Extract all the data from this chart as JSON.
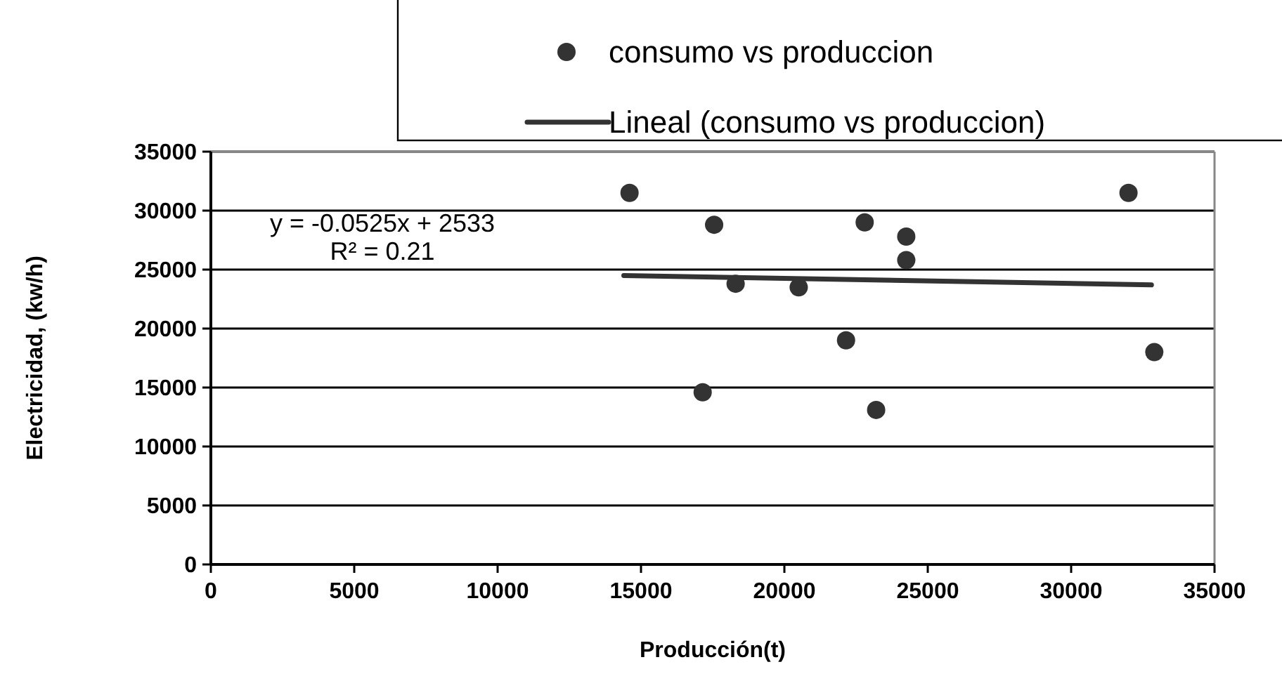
{
  "chart_data": {
    "type": "scatter",
    "xlabel": "Producción(t)",
    "ylabel": "Electricidad, (kw/h)",
    "xlim": [
      0,
      35000
    ],
    "ylim": [
      0,
      35000
    ],
    "xticks": [
      0,
      5000,
      10000,
      15000,
      20000,
      25000,
      30000,
      35000
    ],
    "yticks": [
      0,
      5000,
      10000,
      15000,
      20000,
      25000,
      30000,
      35000
    ],
    "grid": "y",
    "legend": "top right",
    "marker": "circle",
    "annotations": [
      "y = -0.0525x + 2533",
      "R² = 0.21"
    ],
    "series": [
      {
        "name": "consumo vs produccion",
        "color": "#333333",
        "x": [
          14600,
          17550,
          18300,
          17150,
          20500,
          22800,
          24250,
          24250,
          22150,
          23200,
          32000,
          32900
        ],
        "values": [
          31500,
          28800,
          23800,
          14600,
          23500,
          29000,
          27800,
          25800,
          19000,
          13100,
          31500,
          18000
        ]
      },
      {
        "name": "Lineal (consumo vs produccion)",
        "type": "line",
        "color": "#333333",
        "line_style": "solid",
        "marker": "none",
        "x": [
          14400,
          32800
        ],
        "values": [
          24500,
          23700
        ]
      }
    ]
  }
}
